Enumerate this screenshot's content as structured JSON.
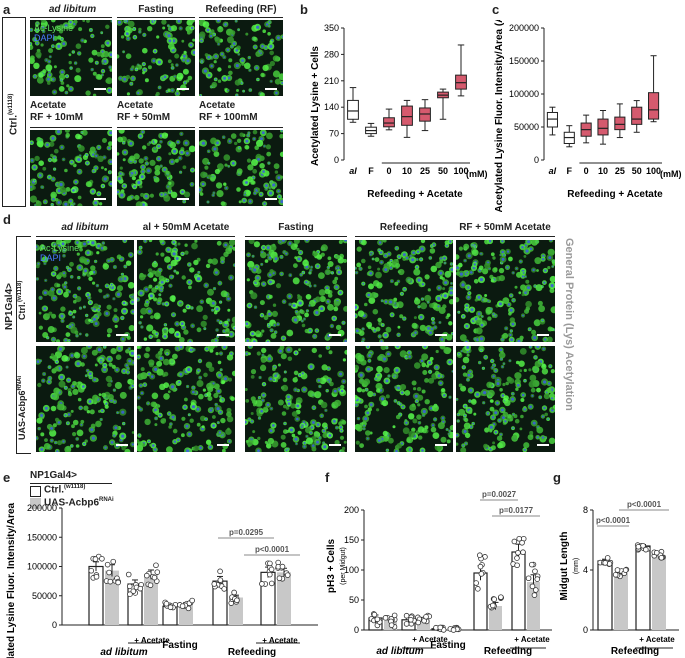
{
  "panel_letters": {
    "a": "a",
    "b": "b",
    "c": "c",
    "d": "d",
    "e": "e",
    "f": "f",
    "g": "g"
  },
  "panel_a": {
    "side_label_text": "Ctrl.",
    "side_label_sup": "(w1118)",
    "col_headers": [
      "ad libitum",
      "Fasting",
      "Refeeding (RF)"
    ],
    "row2_headers": [
      {
        "line1": "Acetate",
        "line2": "RF + 10mM"
      },
      {
        "line1": "Acetate",
        "line2": "RF + 50mM"
      },
      {
        "line1": "Acetate",
        "line2": "RF + 100mM"
      }
    ],
    "stain_green": "Ac-Lysine",
    "stain_blue": "DAPI"
  },
  "panel_d": {
    "genotype_label": "NP1Gal4>",
    "row_labels": [
      {
        "text": "Ctrl.",
        "sup": "(w1118)"
      },
      {
        "text": "UAS-Acbp6",
        "sup": "RNAi"
      }
    ],
    "col_headers": [
      "ad libitum",
      "al + 50mM Acetate",
      "Fasting",
      "Refeeding",
      "RF + 50mM Acetate"
    ],
    "stain_green": "Ac-Lysine",
    "stain_blue": "DAPI",
    "right_label": "General Protein (Lys) Acetylation"
  },
  "panel_e_legend": {
    "genotype": "NP1Gal4>",
    "ctrl": "Ctrl.",
    "ctrl_sup": "(w1118)",
    "rnai": "UAS-Acbp6",
    "rnai_sup": "RNAi"
  },
  "chart_data": [
    {
      "id": "b",
      "type": "box",
      "ylabel": "Acetylated Lysine + Cells",
      "ylim": [
        0,
        350
      ],
      "yticks": [
        0,
        70,
        140,
        210,
        280,
        350
      ],
      "categories": [
        "al",
        "F",
        "0",
        "10",
        "25",
        "50",
        "100"
      ],
      "unit_label": "(mM)",
      "group_label": "Refeeding + Acetate",
      "boxes": [
        {
          "min": 100,
          "q1": 108,
          "median": 130,
          "q3": 158,
          "max": 192
        },
        {
          "min": 63,
          "q1": 70,
          "median": 78,
          "q3": 87,
          "max": 97
        },
        {
          "min": 80,
          "q1": 88,
          "median": 98,
          "q3": 112,
          "max": 135
        },
        {
          "min": 60,
          "q1": 92,
          "median": 115,
          "q3": 143,
          "max": 158
        },
        {
          "min": 78,
          "q1": 103,
          "median": 122,
          "q3": 138,
          "max": 160
        },
        {
          "min": 108,
          "q1": 165,
          "median": 172,
          "q3": 180,
          "max": 188
        },
        {
          "min": 170,
          "q1": 188,
          "median": 205,
          "q3": 225,
          "max": 305
        }
      ],
      "colors": [
        "#ffffff",
        "#ffffff",
        "#d55a6e",
        "#d55a6e",
        "#d55a6e",
        "#d55a6e",
        "#d55a6e"
      ]
    },
    {
      "id": "c",
      "type": "box",
      "ylabel": "Acetylated Lysine Fluor. Intensity/Area (A.U.)",
      "ylim": [
        0,
        200000
      ],
      "yticks": [
        0,
        50000,
        100000,
        150000,
        200000
      ],
      "categories": [
        "al",
        "F",
        "0",
        "10",
        "25",
        "50",
        "100"
      ],
      "unit_label": "(mM)",
      "group_label": "Refeeding + Acetate",
      "boxes": [
        {
          "min": 38000,
          "q1": 50000,
          "median": 62000,
          "q3": 72000,
          "max": 80000
        },
        {
          "min": 20000,
          "q1": 25000,
          "median": 34000,
          "q3": 42000,
          "max": 52000
        },
        {
          "min": 26000,
          "q1": 36000,
          "median": 46000,
          "q3": 56000,
          "max": 68000
        },
        {
          "min": 24000,
          "q1": 38000,
          "median": 48000,
          "q3": 62000,
          "max": 75000
        },
        {
          "min": 34000,
          "q1": 46000,
          "median": 54000,
          "q3": 65000,
          "max": 85000
        },
        {
          "min": 42000,
          "q1": 54000,
          "median": 62000,
          "q3": 80000,
          "max": 90000
        },
        {
          "min": 58000,
          "q1": 62000,
          "median": 76000,
          "q3": 102000,
          "max": 158000
        }
      ],
      "colors": [
        "#ffffff",
        "#ffffff",
        "#d55a6e",
        "#d55a6e",
        "#d55a6e",
        "#d55a6e",
        "#d55a6e"
      ]
    },
    {
      "id": "e",
      "type": "bar",
      "ylabel": "Acetylated Lysine Fluor. Intensity/Area (A.U.)",
      "ylim": [
        0,
        200000
      ],
      "yticks": [
        0,
        50000,
        100000,
        150000,
        200000
      ],
      "group_labels": [
        "ad libitum",
        "Fasting",
        "Refeeding"
      ],
      "acetate_label": "+ Acetate",
      "series": [
        {
          "name": "Ctrl.",
          "color": "#ffffff",
          "values": [
            100000,
            70000,
            32000,
            75000,
            90000
          ]
        },
        {
          "name": "UAS-Acbp6",
          "color": "#c8c8c8",
          "values": [
            93000,
            86000,
            35000,
            47000,
            90000
          ]
        }
      ],
      "errors": [
        [
          8000,
          7000,
          3000,
          8000,
          9000
        ],
        [
          10000,
          8000,
          3000,
          4000,
          7000
        ]
      ],
      "pvalues": [
        {
          "label": "p=0.0295"
        },
        {
          "label": "p<0.0001"
        }
      ]
    },
    {
      "id": "f",
      "type": "bar",
      "ylabel": "pH3 + Cells",
      "ylabel_sub": "(per Midgut)",
      "ylim": [
        0,
        200
      ],
      "yticks": [
        0,
        50,
        100,
        150,
        200
      ],
      "group_labels": [
        "ad libitum",
        "Fasting",
        "Refeeding"
      ],
      "acetate_label": "+ Acetate",
      "series": [
        {
          "name": "Ctrl.",
          "color": "#ffffff",
          "values": [
            20,
            17,
            2,
            95,
            130
          ]
        },
        {
          "name": "UAS-Acbp6",
          "color": "#c8c8c8",
          "values": [
            15,
            18,
            2,
            40,
            80
          ]
        }
      ],
      "errors": [
        [
          5,
          4,
          1,
          12,
          13
        ],
        [
          4,
          3,
          1,
          6,
          12
        ]
      ],
      "pvalues": [
        {
          "label": "p=0.0027"
        },
        {
          "label": "p=0.0177"
        }
      ]
    },
    {
      "id": "g",
      "type": "bar",
      "ylabel": "Midgut Length",
      "ylabel_sub": "(mm)",
      "ylim": [
        0,
        8
      ],
      "yticks": [
        0,
        4,
        8
      ],
      "group_labels": [
        "Refeeding"
      ],
      "acetate_label": "+ Acetate",
      "series": [
        {
          "name": "Ctrl.",
          "color": "#ffffff",
          "values": [
            4.6,
            5.6
          ]
        },
        {
          "name": "UAS-Acbp6",
          "color": "#c8c8c8",
          "values": [
            3.8,
            5.0
          ]
        }
      ],
      "errors": [
        [
          0.12,
          0.1
        ],
        [
          0.1,
          0.09
        ]
      ],
      "pvalues": [
        {
          "label": "p<0.0001"
        },
        {
          "label": "p<0.0001"
        }
      ]
    }
  ]
}
